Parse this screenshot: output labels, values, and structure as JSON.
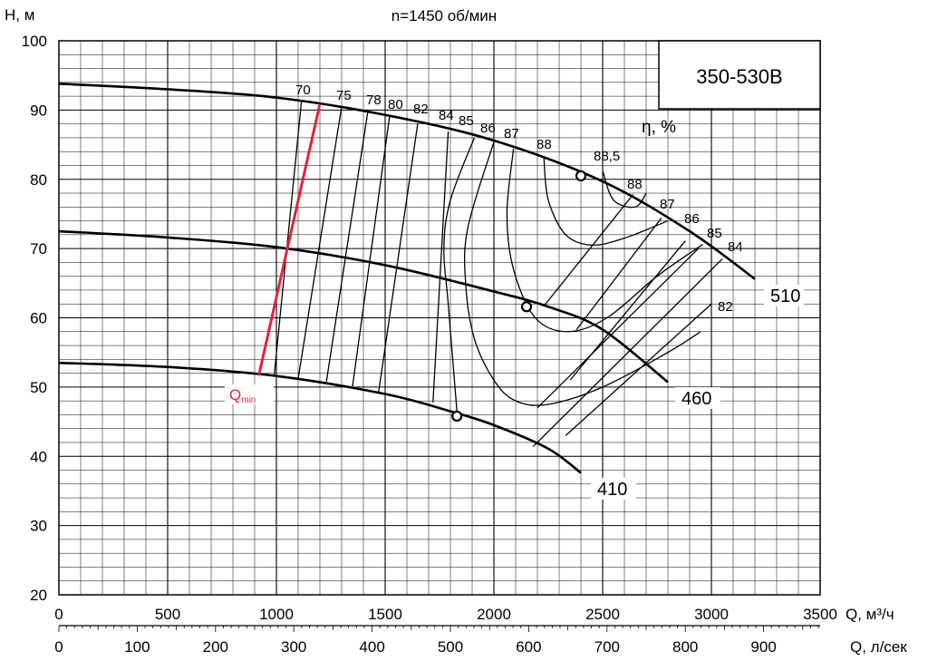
{
  "chart_data": {
    "type": "line",
    "title": "n=1450 об/мин",
    "pump_label": "350-530В",
    "ylabel": "H, м",
    "xlabel_primary": "Q, м³/ч",
    "xlabel_secondary": "Q, л/сек",
    "efficiency_label": "η, %",
    "qmin_label": "Q",
    "qmin_sub": "min",
    "xlim": [
      0,
      3500
    ],
    "ylim": [
      20,
      100
    ],
    "x_ticks": [
      "0",
      "500",
      "1000",
      "1500",
      "2000",
      "2500",
      "3000",
      "3500"
    ],
    "y_ticks": [
      "20",
      "30",
      "40",
      "50",
      "60",
      "70",
      "80",
      "90",
      "100"
    ],
    "x2_ticks": [
      "0",
      "100",
      "200",
      "300",
      "400",
      "500",
      "600",
      "700",
      "800",
      "900"
    ],
    "grid": true,
    "series": [
      {
        "name": "510",
        "points": [
          [
            0,
            93.8
          ],
          [
            500,
            93.0
          ],
          [
            1000,
            91.8
          ],
          [
            1500,
            89.3
          ],
          [
            2000,
            85.6
          ],
          [
            2500,
            79.7
          ],
          [
            2900,
            72.5
          ],
          [
            3200,
            65.6
          ]
        ]
      },
      {
        "name": "460",
        "points": [
          [
            0,
            72.5
          ],
          [
            500,
            71.6
          ],
          [
            1000,
            70.2
          ],
          [
            1500,
            67.6
          ],
          [
            2000,
            63.8
          ],
          [
            2250,
            61.6
          ],
          [
            2500,
            58.3
          ],
          [
            2800,
            50.7
          ]
        ]
      },
      {
        "name": "410",
        "points": [
          [
            0,
            53.5
          ],
          [
            500,
            52.9
          ],
          [
            1000,
            51.6
          ],
          [
            1500,
            49.0
          ],
          [
            1800,
            46.5
          ],
          [
            2000,
            44.5
          ],
          [
            2250,
            41.1
          ],
          [
            2400,
            37.6
          ]
        ]
      }
    ],
    "bep_points": [
      {
        "curve": "510",
        "x": 2400,
        "y": 80.5
      },
      {
        "curve": "460",
        "x": 2150,
        "y": 61.6
      },
      {
        "curve": "410",
        "x": 1830,
        "y": 45.8
      }
    ],
    "qmin_line": [
      [
        920,
        51.8
      ],
      [
        1200,
        90.9
      ]
    ],
    "efficiency_lines": [
      {
        "label": "70",
        "points": [
          [
            1115,
            91.2
          ],
          [
            990,
            51.7
          ]
        ]
      },
      {
        "label": "75",
        "points": [
          [
            1300,
            90.5
          ],
          [
            1100,
            51.2
          ]
        ]
      },
      {
        "label": "78",
        "points": [
          [
            1420,
            89.7
          ],
          [
            1230,
            50.8
          ]
        ]
      },
      {
        "label": "80",
        "points": [
          [
            1520,
            89.0
          ],
          [
            1350,
            50.1
          ]
        ]
      },
      {
        "label": "82",
        "points": [
          [
            1650,
            88.1
          ],
          [
            1470,
            49.3
          ]
        ]
      },
      {
        "label": "84",
        "points": [
          [
            1790,
            86.9
          ],
          [
            1720,
            47.8
          ]
        ]
      }
    ],
    "efficiency_contours": [
      {
        "label": "85",
        "points": [
          [
            1910,
            86.0
          ],
          [
            1800,
            77.0
          ],
          [
            1770,
            70.0
          ],
          [
            1790,
            62.0
          ],
          [
            1830,
            46.5
          ]
        ]
      },
      {
        "label": "86",
        "points": [
          [
            2000,
            85.4
          ],
          [
            1880,
            73.0
          ],
          [
            1870,
            65.0
          ],
          [
            1910,
            57.0
          ],
          [
            2000,
            51.0
          ],
          [
            2100,
            48.0
          ],
          [
            2250,
            47.5
          ],
          [
            2500,
            50.0
          ],
          [
            2800,
            55.0
          ],
          [
            2950,
            58.0
          ]
        ]
      },
      {
        "label": "87",
        "points": [
          [
            2090,
            84.4
          ],
          [
            2060,
            75.0
          ],
          [
            2090,
            67.0
          ],
          [
            2190,
            60.0
          ],
          [
            2340,
            58.0
          ],
          [
            2520,
            60.0
          ],
          [
            2750,
            66.0
          ],
          [
            2960,
            70.6
          ]
        ]
      },
      {
        "label": "88",
        "points": [
          [
            2230,
            83.0
          ],
          [
            2250,
            77.0
          ],
          [
            2330,
            72.0
          ],
          [
            2450,
            70.5
          ],
          [
            2600,
            71.5
          ],
          [
            2800,
            74.0
          ]
        ]
      },
      {
        "label": "88,5",
        "points": [
          [
            2500,
            81.2
          ],
          [
            2550,
            77.0
          ],
          [
            2650,
            76.0
          ],
          [
            2700,
            78.0
          ]
        ]
      }
    ],
    "iso_efficiency_lines": [
      {
        "label": "88",
        "points": [
          [
            2640,
            77.8
          ],
          [
            2230,
            61.7
          ]
        ]
      },
      {
        "label": "87",
        "points": [
          [
            2770,
            74.4
          ],
          [
            2380,
            58.3
          ]
        ]
      },
      {
        "label": "86",
        "points": [
          [
            2880,
            71.1
          ],
          [
            2350,
            51.0
          ]
        ]
      },
      {
        "label": "85",
        "points": [
          [
            2940,
            70.0
          ],
          [
            2200,
            47.0
          ]
        ]
      },
      {
        "label": "84",
        "points": [
          [
            3050,
            68.5
          ],
          [
            2180,
            41.4
          ]
        ]
      },
      {
        "label": "82",
        "points": [
          [
            3000,
            62.0
          ],
          [
            2330,
            43.0
          ]
        ]
      }
    ],
    "label_texts": {
      "c70": "70",
      "c75": "75",
      "c78": "78",
      "c80": "80",
      "c82": "82",
      "c84": "84",
      "c85": "85",
      "c86": "86",
      "c87": "87",
      "c88a": "88",
      "c885": "88,5",
      "c88b": "88",
      "r87": "87",
      "r86": "86",
      "r85": "85",
      "r84": "84",
      "r82": "82",
      "curve510": "510",
      "curve460": "460",
      "curve410": "410"
    }
  }
}
